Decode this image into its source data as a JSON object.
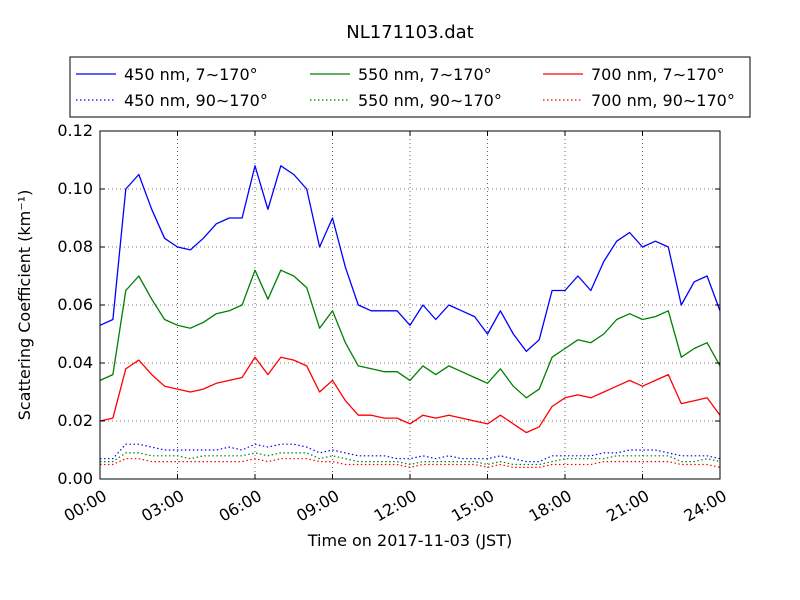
{
  "chart_data": {
    "type": "line",
    "title": "NL171103.dat",
    "xlabel": "Time on 2017-11-03 (JST)",
    "ylabel": "Scattering Coefficient (km⁻¹)",
    "xlim": [
      0,
      24
    ],
    "ylim": [
      0,
      0.12
    ],
    "grid": true,
    "legend_position": "top (above plot)",
    "x_tick_labels": [
      "00:00",
      "03:00",
      "06:00",
      "09:00",
      "12:00",
      "15:00",
      "18:00",
      "21:00",
      "24:00"
    ],
    "x_tick_values": [
      0,
      3,
      6,
      9,
      12,
      15,
      18,
      21,
      24
    ],
    "y_tick_labels": [
      "0.00",
      "0.02",
      "0.04",
      "0.06",
      "0.08",
      "0.10",
      "0.12"
    ],
    "y_tick_values": [
      0,
      0.02,
      0.04,
      0.06,
      0.08,
      0.1,
      0.12
    ],
    "x": [
      0,
      0.5,
      1,
      1.5,
      2,
      2.5,
      3,
      3.5,
      4,
      4.5,
      5,
      5.5,
      6,
      6.5,
      7,
      7.5,
      8,
      8.5,
      9,
      9.5,
      10,
      10.5,
      11,
      11.5,
      12,
      12.5,
      13,
      13.5,
      14,
      14.5,
      15,
      15.5,
      16,
      16.5,
      17,
      17.5,
      18,
      18.5,
      19,
      19.5,
      20,
      20.5,
      21,
      21.5,
      22,
      22.5,
      23,
      23.5,
      24
    ],
    "series": [
      {
        "name": "450 nm, 7∼170°",
        "color": "#0000ff",
        "style": "solid",
        "values": [
          0.053,
          0.055,
          0.1,
          0.105,
          0.093,
          0.083,
          0.08,
          0.079,
          0.083,
          0.088,
          0.09,
          0.09,
          0.108,
          0.093,
          0.108,
          0.105,
          0.1,
          0.08,
          0.09,
          0.073,
          0.06,
          0.058,
          0.058,
          0.058,
          0.053,
          0.06,
          0.055,
          0.06,
          0.058,
          0.056,
          0.05,
          0.058,
          0.05,
          0.044,
          0.048,
          0.065,
          0.065,
          0.07,
          0.065,
          0.075,
          0.082,
          0.085,
          0.08,
          0.082,
          0.08,
          0.06,
          0.068,
          0.07,
          0.058
        ]
      },
      {
        "name": "550 nm, 7∼170°",
        "color": "#008000",
        "style": "solid",
        "values": [
          0.034,
          0.036,
          0.065,
          0.07,
          0.062,
          0.055,
          0.053,
          0.052,
          0.054,
          0.057,
          0.058,
          0.06,
          0.072,
          0.062,
          0.072,
          0.07,
          0.066,
          0.052,
          0.058,
          0.047,
          0.039,
          0.038,
          0.037,
          0.037,
          0.034,
          0.039,
          0.036,
          0.039,
          0.037,
          0.035,
          0.033,
          0.038,
          0.032,
          0.028,
          0.031,
          0.042,
          0.045,
          0.048,
          0.047,
          0.05,
          0.055,
          0.057,
          0.055,
          0.056,
          0.058,
          0.042,
          0.045,
          0.047,
          0.039
        ]
      },
      {
        "name": "700 nm, 7∼170°",
        "color": "#ff0000",
        "style": "solid",
        "values": [
          0.02,
          0.021,
          0.038,
          0.041,
          0.036,
          0.032,
          0.031,
          0.03,
          0.031,
          0.033,
          0.034,
          0.035,
          0.042,
          0.036,
          0.042,
          0.041,
          0.039,
          0.03,
          0.034,
          0.027,
          0.022,
          0.022,
          0.021,
          0.021,
          0.019,
          0.022,
          0.021,
          0.022,
          0.021,
          0.02,
          0.019,
          0.022,
          0.019,
          0.016,
          0.018,
          0.025,
          0.028,
          0.029,
          0.028,
          0.03,
          0.032,
          0.034,
          0.032,
          0.034,
          0.036,
          0.026,
          0.027,
          0.028,
          0.022
        ]
      },
      {
        "name": "450 nm, 90∼170°",
        "color": "#0000ff",
        "style": "dotted",
        "values": [
          0.007,
          0.007,
          0.012,
          0.012,
          0.011,
          0.01,
          0.01,
          0.01,
          0.01,
          0.01,
          0.011,
          0.01,
          0.012,
          0.011,
          0.012,
          0.012,
          0.011,
          0.009,
          0.01,
          0.009,
          0.008,
          0.008,
          0.008,
          0.007,
          0.007,
          0.008,
          0.007,
          0.008,
          0.007,
          0.007,
          0.007,
          0.008,
          0.007,
          0.006,
          0.006,
          0.008,
          0.008,
          0.008,
          0.008,
          0.009,
          0.009,
          0.01,
          0.01,
          0.01,
          0.009,
          0.008,
          0.008,
          0.008,
          0.007
        ]
      },
      {
        "name": "550 nm, 90∼170°",
        "color": "#008000",
        "style": "dotted",
        "values": [
          0.006,
          0.006,
          0.009,
          0.009,
          0.008,
          0.008,
          0.008,
          0.007,
          0.008,
          0.008,
          0.008,
          0.008,
          0.009,
          0.008,
          0.009,
          0.009,
          0.009,
          0.007,
          0.008,
          0.007,
          0.006,
          0.006,
          0.006,
          0.006,
          0.005,
          0.006,
          0.006,
          0.006,
          0.006,
          0.006,
          0.005,
          0.006,
          0.005,
          0.005,
          0.005,
          0.006,
          0.007,
          0.007,
          0.007,
          0.007,
          0.008,
          0.008,
          0.008,
          0.008,
          0.008,
          0.006,
          0.006,
          0.007,
          0.006
        ]
      },
      {
        "name": "700 nm, 90∼170°",
        "color": "#ff0000",
        "style": "dotted",
        "values": [
          0.005,
          0.005,
          0.007,
          0.007,
          0.006,
          0.006,
          0.006,
          0.006,
          0.006,
          0.006,
          0.006,
          0.006,
          0.007,
          0.006,
          0.007,
          0.007,
          0.007,
          0.006,
          0.006,
          0.005,
          0.005,
          0.005,
          0.005,
          0.005,
          0.004,
          0.005,
          0.005,
          0.005,
          0.005,
          0.005,
          0.004,
          0.005,
          0.004,
          0.004,
          0.004,
          0.005,
          0.005,
          0.005,
          0.005,
          0.006,
          0.006,
          0.006,
          0.006,
          0.006,
          0.006,
          0.005,
          0.005,
          0.005,
          0.004
        ]
      }
    ]
  }
}
